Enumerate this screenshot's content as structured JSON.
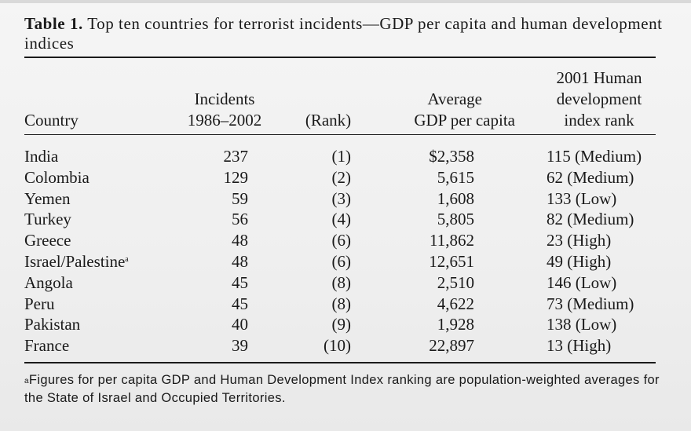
{
  "caption": {
    "label": "Table 1.",
    "text": "Top ten countries for terrorist incidents—GDP per capita and human development indices"
  },
  "headers": {
    "country": "Country",
    "incidents_line1": "Incidents",
    "incidents_line2": "1986–2002",
    "rank": "(Rank)",
    "gdp_line1": "Average",
    "gdp_line2": "GDP per capita",
    "hdi_line1": "2001 Human",
    "hdi_line2": "development",
    "hdi_line3": "index rank"
  },
  "rows": [
    {
      "country": "India",
      "mark": "",
      "incidents": "237",
      "rank": "(1)",
      "gdp": "$2,358",
      "hdi": "115 (Medium)"
    },
    {
      "country": "Colombia",
      "mark": "",
      "incidents": "129",
      "rank": "(2)",
      "gdp": "5,615",
      "hdi": "62 (Medium)"
    },
    {
      "country": "Yemen",
      "mark": "",
      "incidents": "59",
      "rank": "(3)",
      "gdp": "1,608",
      "hdi": "133 (Low)"
    },
    {
      "country": "Turkey",
      "mark": "",
      "incidents": "56",
      "rank": "(4)",
      "gdp": "5,805",
      "hdi": "82 (Medium)"
    },
    {
      "country": "Greece",
      "mark": "",
      "incidents": "48",
      "rank": "(6)",
      "gdp": "11,862",
      "hdi": "23 (High)"
    },
    {
      "country": "Israel/Palestine",
      "mark": "a",
      "incidents": "48",
      "rank": "(6)",
      "gdp": "12,651",
      "hdi": "49 (High)"
    },
    {
      "country": "Angola",
      "mark": "",
      "incidents": "45",
      "rank": "(8)",
      "gdp": "2,510",
      "hdi": "146 (Low)"
    },
    {
      "country": "Peru",
      "mark": "",
      "incidents": "45",
      "rank": "(8)",
      "gdp": "4,622",
      "hdi": "73 (Medium)"
    },
    {
      "country": "Pakistan",
      "mark": "",
      "incidents": "40",
      "rank": "(9)",
      "gdp": "1,928",
      "hdi": "138 (Low)"
    },
    {
      "country": "France",
      "mark": "",
      "incidents": "39",
      "rank": "(10)",
      "gdp": "22,897",
      "hdi": "13 (High)"
    }
  ],
  "footnote": {
    "mark": "a",
    "text": "Figures for per capita GDP and Human Development Index ranking are population-weighted averages for the State of Israel and Occupied Territories."
  }
}
